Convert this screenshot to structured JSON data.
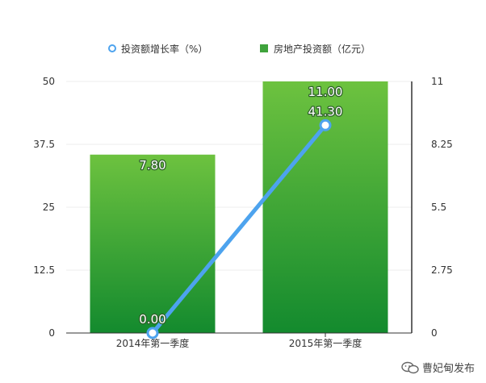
{
  "chart_data": {
    "type": "bar",
    "categories": [
      "2014年第一季度",
      "2015年第一季度"
    ],
    "series": [
      {
        "name": "房地产投资额（亿元）",
        "type": "bar",
        "axis": "right",
        "values": [
          7.8,
          11.0
        ],
        "labels": [
          "7.80",
          "11.00"
        ],
        "color": "#3fa33c"
      },
      {
        "name": "投资额增长率（%）",
        "type": "line",
        "axis": "left",
        "values": [
          0.0,
          41.3
        ],
        "labels": [
          "0.00",
          "41.30"
        ],
        "color": "#4da3ee"
      }
    ],
    "y_left": {
      "ticks": [
        "0",
        "12.5",
        "25",
        "37.5",
        "50"
      ],
      "range": [
        0,
        50
      ]
    },
    "y_right": {
      "ticks": [
        "0",
        "2.75",
        "5.5",
        "8.25",
        "11"
      ],
      "range": [
        0,
        11
      ]
    },
    "grid": true,
    "legend_position": "top"
  },
  "watermark": {
    "text": "曹妃甸发布",
    "icon": "wechat-icon"
  }
}
